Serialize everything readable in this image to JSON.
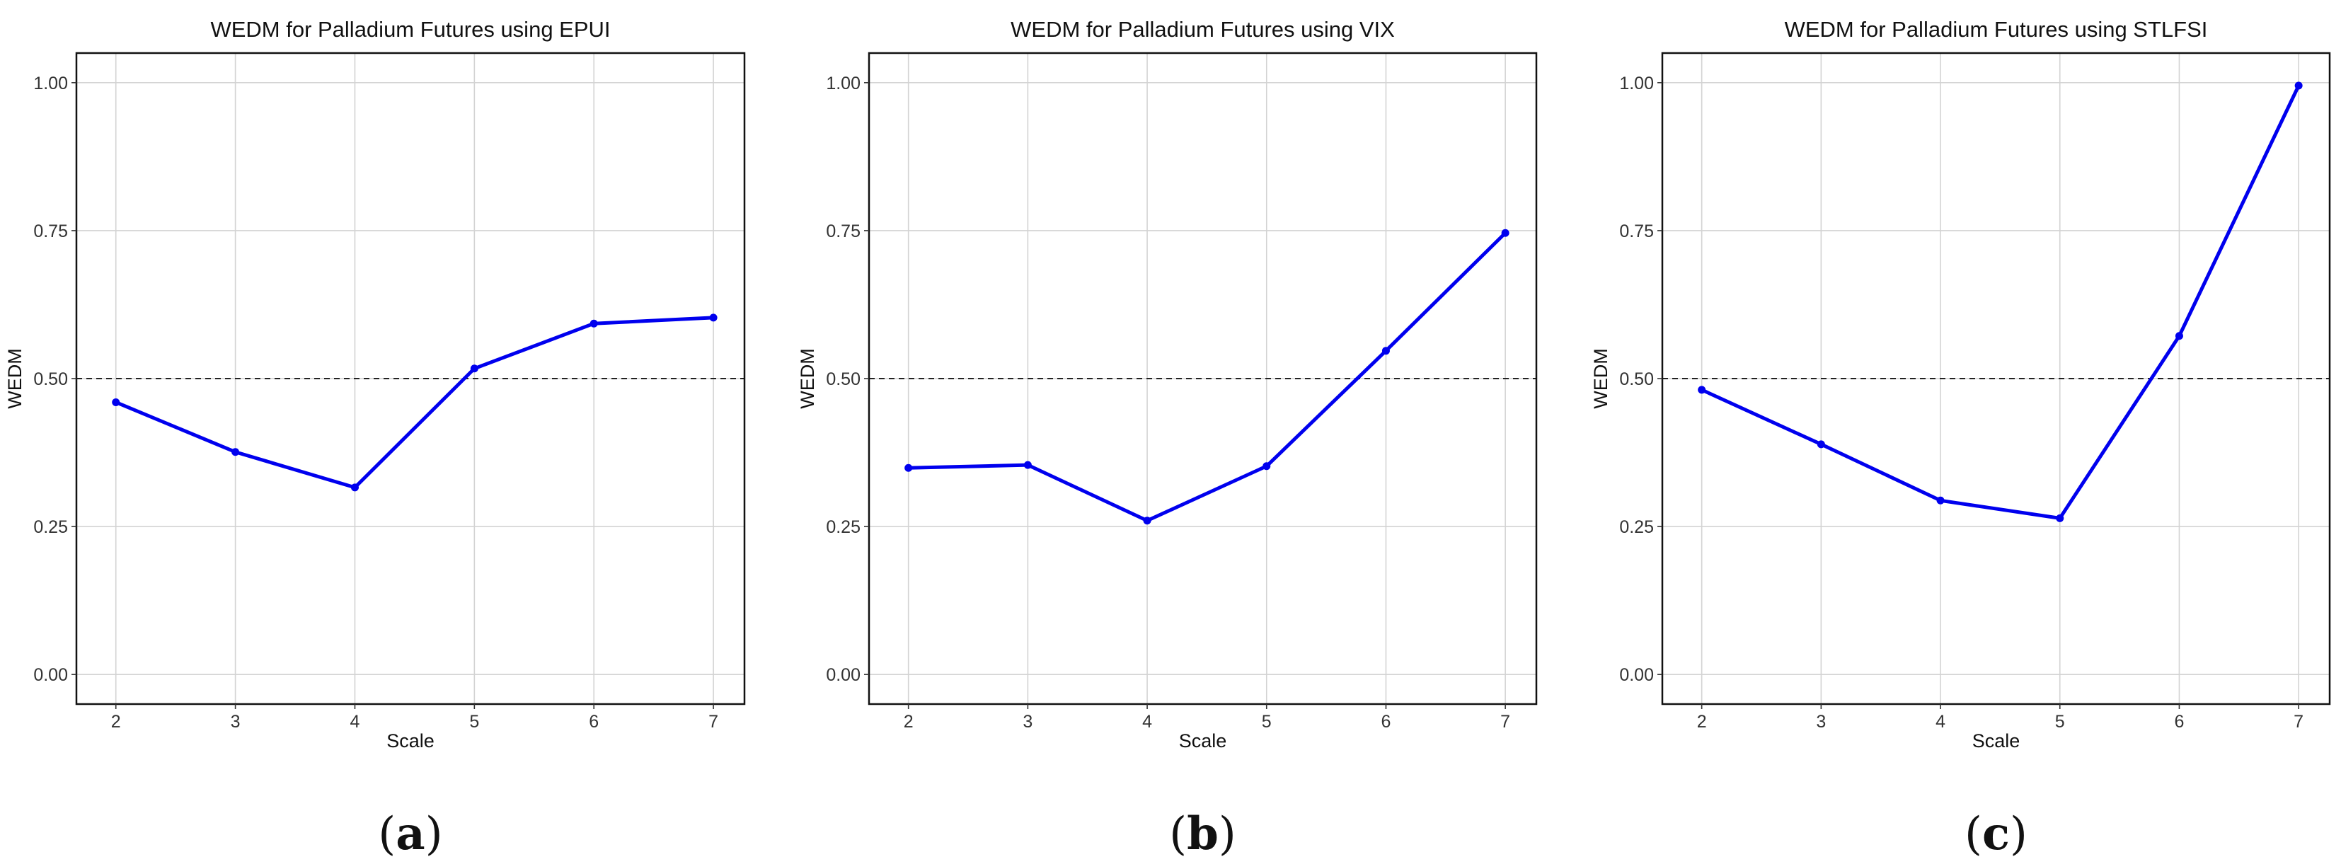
{
  "chart_data": [
    {
      "type": "line",
      "title": "WEDM for Palladium Futures using EPUI",
      "xlabel": "Scale",
      "ylabel": "WEDM",
      "x": [
        2,
        3,
        4,
        5,
        6,
        7
      ],
      "y": [
        0.46,
        0.376,
        0.316,
        0.517,
        0.593,
        0.603
      ],
      "xlim": [
        1.67,
        7.26
      ],
      "ylim": [
        -0.05,
        1.05
      ],
      "xticks": [
        "2",
        "3",
        "4",
        "5",
        "6",
        "7"
      ],
      "yticks": [
        "0.00",
        "0.25",
        "0.50",
        "0.75",
        "1.00"
      ],
      "reference_line": 0.5,
      "color": "#0000ee",
      "grid": true,
      "panel_label": "a"
    },
    {
      "type": "line",
      "title": "WEDM for Palladium Futures using VIX",
      "xlabel": "Scale",
      "ylabel": "WEDM",
      "x": [
        2,
        3,
        4,
        5,
        6,
        7
      ],
      "y": [
        0.349,
        0.354,
        0.26,
        0.352,
        0.547,
        0.746
      ],
      "xlim": [
        1.67,
        7.26
      ],
      "ylim": [
        -0.05,
        1.05
      ],
      "xticks": [
        "2",
        "3",
        "4",
        "5",
        "6",
        "7"
      ],
      "yticks": [
        "0.00",
        "0.25",
        "0.50",
        "0.75",
        "1.00"
      ],
      "reference_line": 0.5,
      "color": "#0000ee",
      "grid": true,
      "panel_label": "b"
    },
    {
      "type": "line",
      "title": "WEDM for Palladium Futures using STLFSI",
      "xlabel": "Scale",
      "ylabel": "WEDM",
      "x": [
        2,
        3,
        4,
        5,
        6,
        7
      ],
      "y": [
        0.481,
        0.389,
        0.294,
        0.264,
        0.572,
        0.995
      ],
      "xlim": [
        1.67,
        7.26
      ],
      "ylim": [
        -0.05,
        1.05
      ],
      "xticks": [
        "2",
        "3",
        "4",
        "5",
        "6",
        "7"
      ],
      "yticks": [
        "0.00",
        "0.25",
        "0.50",
        "0.75",
        "1.00"
      ],
      "reference_line": 0.5,
      "color": "#0000ee",
      "grid": true,
      "panel_label": "c"
    }
  ]
}
